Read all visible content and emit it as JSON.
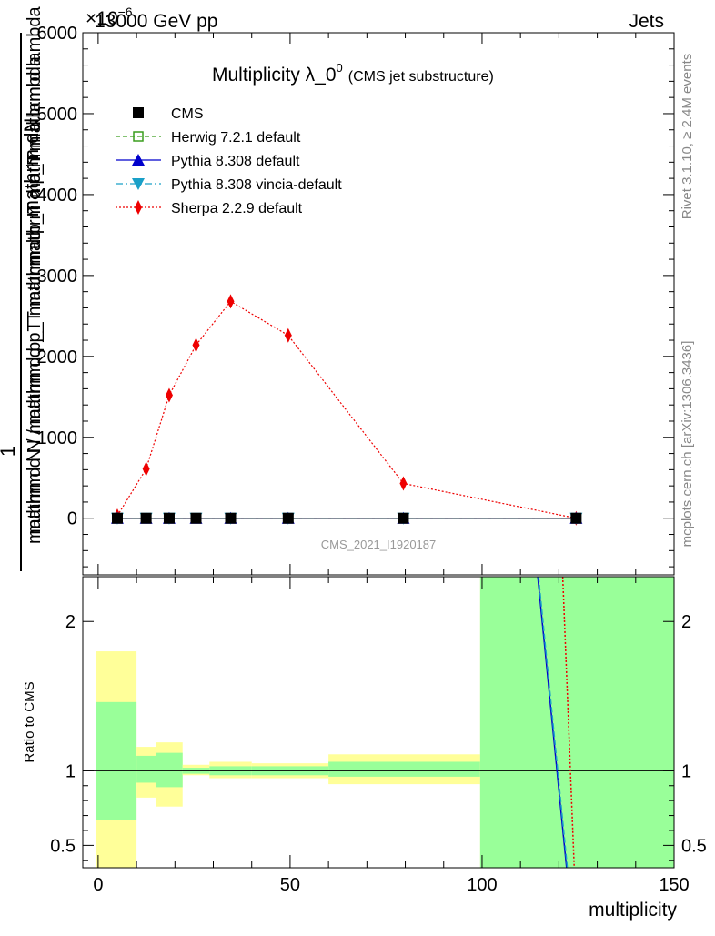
{
  "header": {
    "left_label": "13000 GeV pp",
    "right_label": "Jets",
    "y_multiplier": "×10",
    "y_multiplier_exp": "−6",
    "side_label_top": "Rivet 3.1.10, ≥ 2.4M events",
    "side_label_bottom": "mcplots.cern.ch [arXiv:1306.3436]",
    "watermark": "CMS_2021_I1920187"
  },
  "chart_data": [
    {
      "type": "line",
      "title": "Multiplicity λ_0",
      "title_sup": "0",
      "title_suffix": "(CMS jet substructure)",
      "ylabel_top": "1",
      "ylabel_num": "mathrm dN",
      "ylabel_den": "mathrm d N / mathrm d p_T mathrm d p_T mathrm d lambda",
      "ylabel_overlay_a": "mathrm d p_T mathrm d lambda",
      "ylabel_overlay_b": "mathrm d N / mathrm d p_T mathrm d",
      "xlim": [
        -4,
        150
      ],
      "ylim": [
        -700,
        6000
      ],
      "yticks": [
        0,
        1000,
        2000,
        3000,
        4000,
        5000,
        6000
      ],
      "ytick_labels": [
        "0",
        "1000",
        "2000",
        "3000",
        "4000",
        "5000",
        "6000"
      ],
      "legend_position": "top-left",
      "x": [
        5,
        12.5,
        18.5,
        25.5,
        34.5,
        49.5,
        79.5,
        124.5
      ],
      "series": [
        {
          "name": "CMS",
          "color": "#000000",
          "marker": "square",
          "dash": "none",
          "values": [
            0,
            0,
            0,
            0,
            0,
            0,
            0,
            0
          ]
        },
        {
          "name": "Herwig 7.2.1 default",
          "color": "#3a9e1e",
          "marker": "open-square",
          "dash": "5,3",
          "values": [
            0,
            0,
            0,
            0,
            0,
            0,
            0,
            0
          ]
        },
        {
          "name": "Pythia 8.308 default",
          "color": "#0000cc",
          "marker": "triangle-up",
          "dash": "none",
          "values": [
            0,
            0,
            0,
            0,
            0,
            0,
            0,
            0
          ]
        },
        {
          "name": "Pythia 8.308 vincia-default",
          "color": "#1aa0c8",
          "marker": "triangle-down",
          "dash": "8,3,2,3",
          "values": [
            0,
            0,
            0,
            0,
            0,
            0,
            0,
            0
          ]
        },
        {
          "name": "Sherpa 2.2.9 default",
          "color": "#ee0000",
          "marker": "diamond",
          "dash": "2,2",
          "values": [
            30,
            610,
            1520,
            2140,
            2680,
            2260,
            430,
            0
          ]
        }
      ]
    },
    {
      "type": "line",
      "ylabel": "Ratio to CMS",
      "xlabel": "multiplicity",
      "xlim": [
        -4,
        150
      ],
      "ylim": [
        0.35,
        2.3
      ],
      "xticks": [
        0,
        50,
        100,
        150
      ],
      "xtick_labels": [
        "0",
        "50",
        "100",
        "150"
      ],
      "yticks": [
        0.5,
        1,
        2
      ],
      "ytick_labels": [
        "0.5",
        "1",
        "2"
      ],
      "uncertainty_bands": [
        {
          "x": [
            -0.5,
            10
          ],
          "yellow": [
            0.35,
            1.8
          ],
          "green": [
            0.67,
            1.46
          ]
        },
        {
          "x": [
            10,
            15
          ],
          "yellow": [
            0.82,
            1.16
          ],
          "green": [
            0.92,
            1.1
          ]
        },
        {
          "x": [
            15,
            22
          ],
          "yellow": [
            0.76,
            1.19
          ],
          "green": [
            0.89,
            1.12
          ]
        },
        {
          "x": [
            22,
            29
          ],
          "yellow": [
            0.97,
            1.04
          ],
          "green": [
            0.98,
            1.02
          ]
        },
        {
          "x": [
            29,
            40
          ],
          "yellow": [
            0.95,
            1.06
          ],
          "green": [
            0.97,
            1.03
          ]
        },
        {
          "x": [
            40,
            60
          ],
          "yellow": [
            0.95,
            1.05
          ],
          "green": [
            0.97,
            1.03
          ]
        },
        {
          "x": [
            60,
            99.5
          ],
          "yellow": [
            0.91,
            1.11
          ],
          "green": [
            0.96,
            1.06
          ]
        },
        {
          "x": [
            99.5,
            150
          ],
          "yellow": [
            0.35,
            2.3
          ],
          "green": [
            0.35,
            2.3
          ]
        }
      ],
      "ratio_lines": [
        {
          "name": "Pythia 8.308 default",
          "color": "#0000cc",
          "dash": "none",
          "points": [
            [
              114.5,
              2.3
            ],
            [
              122.0,
              0.35
            ]
          ]
        },
        {
          "name": "Pythia 8.308 vincia-default",
          "color": "#1aa0c8",
          "dash": "6,3",
          "points": [
            [
              114.7,
              2.3
            ],
            [
              122.2,
              0.35
            ]
          ]
        },
        {
          "name": "Sherpa 2.2.9 default",
          "color": "#ee0000",
          "dash": "2,2",
          "points": [
            [
              121.0,
              2.3
            ],
            [
              124.0,
              0.35
            ]
          ]
        }
      ]
    }
  ]
}
